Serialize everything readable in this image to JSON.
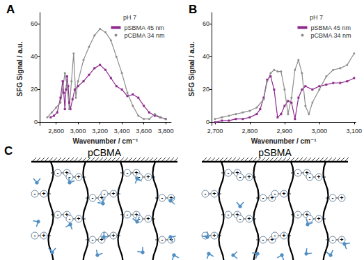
{
  "chart_data": [
    {
      "type": "line",
      "title": "A",
      "annotations": [
        "pH 7"
      ],
      "x_label": "Wavenumber / cm⁻¹",
      "y_label": "SFG Signal / a.u.",
      "xlim": [
        2650,
        3850
      ],
      "xticks": [
        2800,
        3000,
        3200,
        3400,
        3600,
        3800
      ],
      "ylim": [
        -2,
        67
      ],
      "yticks": [
        0,
        20,
        40,
        60
      ],
      "grid": false,
      "legend": "upper right",
      "series": [
        {
          "name": "pSBMA 45 nm",
          "color": "#8e2a8e",
          "marker": "square",
          "x": [
            2750,
            2780,
            2810,
            2840,
            2860,
            2870,
            2880,
            2890,
            2900,
            2910,
            2920,
            2930,
            2950,
            2970,
            3000,
            3050,
            3100,
            3150,
            3200,
            3250,
            3300,
            3350,
            3400,
            3450,
            3500,
            3550,
            3600,
            3650,
            3700,
            3750,
            3800
          ],
          "values": [
            3,
            4,
            6,
            15,
            25,
            18,
            8,
            20,
            28,
            22,
            12,
            8,
            14,
            20,
            22,
            25,
            29,
            33,
            35,
            32,
            27,
            22,
            20,
            16,
            17,
            15,
            10,
            6,
            4,
            3,
            2
          ]
        },
        {
          "name": "pCBMA 34 nm",
          "color": "#8c8c8c",
          "marker": "circle",
          "x": [
            2720,
            2760,
            2800,
            2840,
            2860,
            2880,
            2900,
            2920,
            2940,
            2960,
            2980,
            3000,
            3050,
            3100,
            3150,
            3200,
            3250,
            3300,
            3350,
            3400,
            3450,
            3500,
            3550,
            3600,
            3650,
            3700,
            3750,
            3800
          ],
          "values": [
            3,
            6,
            9,
            12,
            20,
            30,
            22,
            8,
            25,
            42,
            15,
            25,
            38,
            46,
            53,
            57,
            55,
            50,
            40,
            30,
            18,
            10,
            4,
            2,
            2,
            5,
            3,
            2
          ]
        }
      ]
    },
    {
      "type": "line",
      "title": "B",
      "annotations": [
        "pH 7"
      ],
      "x_label": "Wavenumber / cm⁻¹",
      "y_label": "SFG Signal / a.u.",
      "xlim": [
        2690,
        3105
      ],
      "xticks": [
        2700,
        2800,
        2900,
        3000,
        3100
      ],
      "ylim": [
        -2,
        67
      ],
      "yticks": [
        0,
        20,
        40,
        60
      ],
      "grid": false,
      "legend": "upper right",
      "series": [
        {
          "name": "pSBMA 45 nm",
          "color": "#8e2a8e",
          "marker": "square",
          "x": [
            2700,
            2720,
            2740,
            2760,
            2780,
            2800,
            2820,
            2830,
            2840,
            2850,
            2860,
            2870,
            2880,
            2890,
            2900,
            2910,
            2920,
            2930,
            2940,
            2950,
            2960,
            2980,
            3000,
            3020,
            3040,
            3060,
            3080,
            3100
          ],
          "values": [
            0,
            1,
            1,
            2,
            2,
            3,
            5,
            8,
            15,
            26,
            28,
            20,
            3,
            5,
            10,
            13,
            12,
            2,
            15,
            20,
            22,
            20,
            22,
            23,
            24,
            24,
            25,
            27
          ]
        },
        {
          "name": "pCBMA 34 nm",
          "color": "#8c8c8c",
          "marker": "circle",
          "x": [
            2700,
            2720,
            2740,
            2760,
            2780,
            2800,
            2820,
            2840,
            2850,
            2860,
            2870,
            2880,
            2890,
            2900,
            2910,
            2920,
            2930,
            2940,
            2950,
            2960,
            2970,
            2980,
            3000,
            3020,
            3040,
            3060,
            3080,
            3100
          ],
          "values": [
            2,
            3,
            4,
            5,
            6,
            7,
            9,
            14,
            25,
            30,
            32,
            31,
            31,
            20,
            5,
            15,
            32,
            38,
            30,
            10,
            5,
            12,
            20,
            28,
            32,
            33,
            35,
            42
          ]
        }
      ]
    }
  ],
  "diagram": {
    "title": "C",
    "panels": [
      {
        "label": "pCBMA"
      },
      {
        "label": "pSBMA"
      }
    ],
    "charges": {
      "positive": "+",
      "negative": "-"
    }
  }
}
